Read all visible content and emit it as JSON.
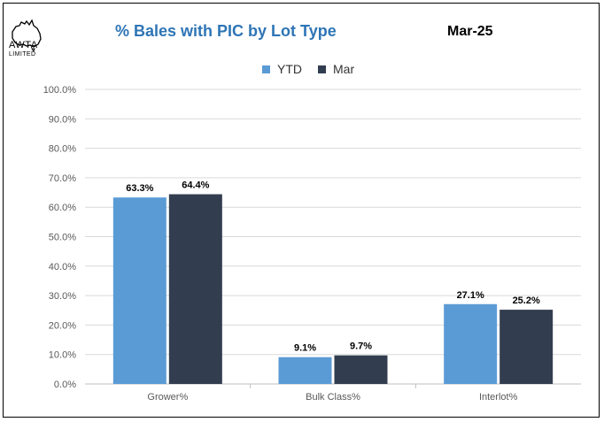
{
  "logo": {
    "name": "AWTA",
    "sub": "LIMITED"
  },
  "header": {
    "title": "% Bales with PIC by Lot Type",
    "period": "Mar-25"
  },
  "colors": {
    "ytd": "#5b9bd5",
    "mar": "#323e4f",
    "title": "#2e75b6",
    "grid": "#d9d9d9"
  },
  "chart_data": {
    "type": "bar",
    "title": "% Bales with PIC by Lot Type",
    "categories": [
      "Grower%",
      "Bulk Class%",
      "Interlot%"
    ],
    "series": [
      {
        "name": "YTD",
        "values": [
          63.3,
          9.1,
          27.1
        ],
        "labels": [
          "63.3%",
          "9.1%",
          "27.1%"
        ]
      },
      {
        "name": "Mar",
        "values": [
          64.4,
          9.7,
          25.2
        ],
        "labels": [
          "64.4%",
          "9.7%",
          "25.2%"
        ]
      }
    ],
    "y_ticks": [
      "0.0%",
      "10.0%",
      "20.0%",
      "30.0%",
      "40.0%",
      "50.0%",
      "60.0%",
      "70.0%",
      "80.0%",
      "90.0%",
      "100.0%"
    ],
    "ylim": [
      0,
      100
    ],
    "grid": true,
    "legend_position": "top"
  }
}
